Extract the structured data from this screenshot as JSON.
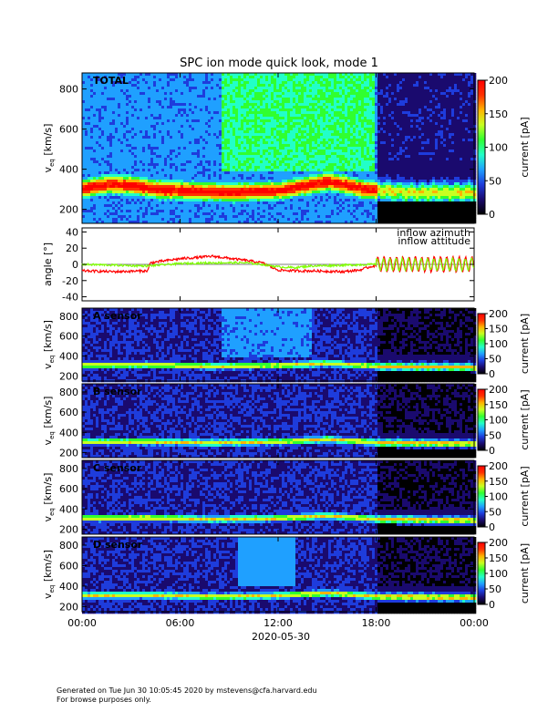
{
  "title": "SPC ion mode quick look, mode 1",
  "footer": {
    "line1": "Generated on Tue Jun 30 10:05:45 2020 by mstevens@cfa.harvard.edu",
    "line2": "For browse purposes only."
  },
  "date_label": "2020-05-30",
  "colors": {
    "colormap": [
      "#000000",
      "#1a0a6e",
      "#1e3cdc",
      "#1fa0ff",
      "#22ffc8",
      "#30ff30",
      "#c8ff20",
      "#ffb400",
      "#ff3000",
      "#ff0000"
    ],
    "azimuth": "#ff0000",
    "attitude": "#7fff00"
  },
  "chart_data": [
    {
      "type": "heatmap",
      "name": "TOTAL",
      "panel_label": "TOTAL",
      "ylabel_main": "v",
      "ylabel_sub": "eq",
      "ylabel_unit": " [km/s]",
      "x_ticks": [
        "00:00",
        "06:00",
        "12:00",
        "18:00",
        "00:00"
      ],
      "y_ticks": [
        200,
        400,
        600,
        800
      ],
      "ylim": [
        130,
        880
      ],
      "colorbar": {
        "label": "current [pA]",
        "ticks": [
          0,
          50,
          100,
          150,
          200
        ],
        "range": [
          0,
          200
        ]
      },
      "ridge_kms": [
        [
          0,
          310
        ],
        [
          1.5,
          330
        ],
        [
          3,
          325
        ],
        [
          4.5,
          305
        ],
        [
          6,
          300
        ],
        [
          9,
          290
        ],
        [
          12,
          300
        ],
        [
          14,
          330
        ],
        [
          15,
          345
        ],
        [
          16,
          330
        ],
        [
          17,
          310
        ],
        [
          18,
          300
        ],
        [
          20,
          290
        ],
        [
          24,
          290
        ]
      ]
    },
    {
      "type": "line",
      "name": "angle",
      "ylabel": "angle [°]",
      "y_ticks": [
        -40,
        -20,
        0,
        20,
        40
      ],
      "ylim": [
        -45,
        45
      ],
      "x_ticks": [
        "00:00",
        "06:00",
        "12:00",
        "18:00",
        "00:00"
      ],
      "series": [
        {
          "name": "inflow azimuth",
          "x_hours": [
            0,
            2,
            4,
            4.2,
            6,
            8,
            10,
            11,
            12,
            13,
            14,
            16,
            17,
            17.8
          ],
          "y": [
            -8,
            -9,
            -8,
            2,
            7,
            10,
            5,
            2,
            -7,
            -8,
            -8,
            -9,
            -7,
            -2
          ]
        },
        {
          "name": "inflow attitude",
          "x_hours": [
            0,
            2,
            4,
            6,
            8,
            10,
            11,
            12,
            13,
            14,
            16,
            17.8
          ],
          "y": [
            0,
            -1,
            -2,
            1,
            2,
            2,
            0,
            -3,
            -4,
            -2,
            -1,
            0
          ]
        }
      ],
      "oscillation_after_hour": 18
    },
    {
      "type": "heatmap",
      "name": "A sensor",
      "panel_label": "A sensor",
      "ylabel_main": "v",
      "ylabel_sub": "eq",
      "ylabel_unit": " [km/s]",
      "x_ticks": [
        "00:00",
        "06:00",
        "12:00",
        "18:00",
        "00:00"
      ],
      "y_ticks": [
        200,
        400,
        600,
        800
      ],
      "ylim": [
        150,
        880
      ],
      "colorbar": {
        "label": "current [pA]",
        "ticks": [
          0,
          50,
          100,
          150,
          200
        ],
        "range": [
          0,
          200
        ]
      },
      "ridge_kms": [
        [
          0,
          320
        ],
        [
          4,
          325
        ],
        [
          8,
          310
        ],
        [
          12,
          320
        ],
        [
          15,
          340
        ],
        [
          18,
          310
        ],
        [
          24,
          300
        ]
      ]
    },
    {
      "type": "heatmap",
      "name": "B sensor",
      "panel_label": "B sensor",
      "ylabel_main": "v",
      "ylabel_sub": "eq",
      "ylabel_unit": " [km/s]",
      "x_ticks": [
        "00:00",
        "06:00",
        "12:00",
        "18:00",
        "00:00"
      ],
      "y_ticks": [
        200,
        400,
        600,
        800
      ],
      "ylim": [
        150,
        880
      ],
      "colorbar": {
        "label": "current [pA]",
        "ticks": [
          0,
          50,
          100,
          150,
          200
        ],
        "range": [
          0,
          200
        ]
      },
      "ridge_kms": [
        [
          0,
          320
        ],
        [
          4,
          320
        ],
        [
          8,
          310
        ],
        [
          12,
          320
        ],
        [
          15,
          345
        ],
        [
          18,
          310
        ],
        [
          24,
          300
        ]
      ]
    },
    {
      "type": "heatmap",
      "name": "C sensor",
      "panel_label": "C sensor",
      "ylabel_main": "v",
      "ylabel_sub": "eq",
      "ylabel_unit": " [km/s]",
      "x_ticks": [
        "00:00",
        "06:00",
        "12:00",
        "18:00",
        "00:00"
      ],
      "y_ticks": [
        200,
        400,
        600,
        800
      ],
      "ylim": [
        150,
        880
      ],
      "colorbar": {
        "label": "current [pA]",
        "ticks": [
          0,
          50,
          100,
          150,
          200
        ],
        "range": [
          0,
          200
        ]
      },
      "ridge_kms": [
        [
          0,
          320
        ],
        [
          4,
          325
        ],
        [
          8,
          310
        ],
        [
          12,
          320
        ],
        [
          15,
          345
        ],
        [
          18,
          310
        ],
        [
          24,
          300
        ]
      ]
    },
    {
      "type": "heatmap",
      "name": "D sensor",
      "panel_label": "D sensor",
      "ylabel_main": "v",
      "ylabel_sub": "eq",
      "ylabel_unit": " [km/s]",
      "x_ticks": [
        "00:00",
        "06:00",
        "12:00",
        "18:00",
        "00:00"
      ],
      "y_ticks": [
        200,
        400,
        600,
        800
      ],
      "ylim": [
        150,
        880
      ],
      "colorbar": {
        "label": "current [pA]",
        "ticks": [
          0,
          50,
          100,
          150,
          200
        ],
        "range": [
          0,
          200
        ]
      },
      "ridge_kms": [
        [
          0,
          320
        ],
        [
          4,
          325
        ],
        [
          8,
          310
        ],
        [
          12,
          320
        ],
        [
          15,
          345
        ],
        [
          18,
          310
        ],
        [
          24,
          300
        ]
      ]
    }
  ]
}
